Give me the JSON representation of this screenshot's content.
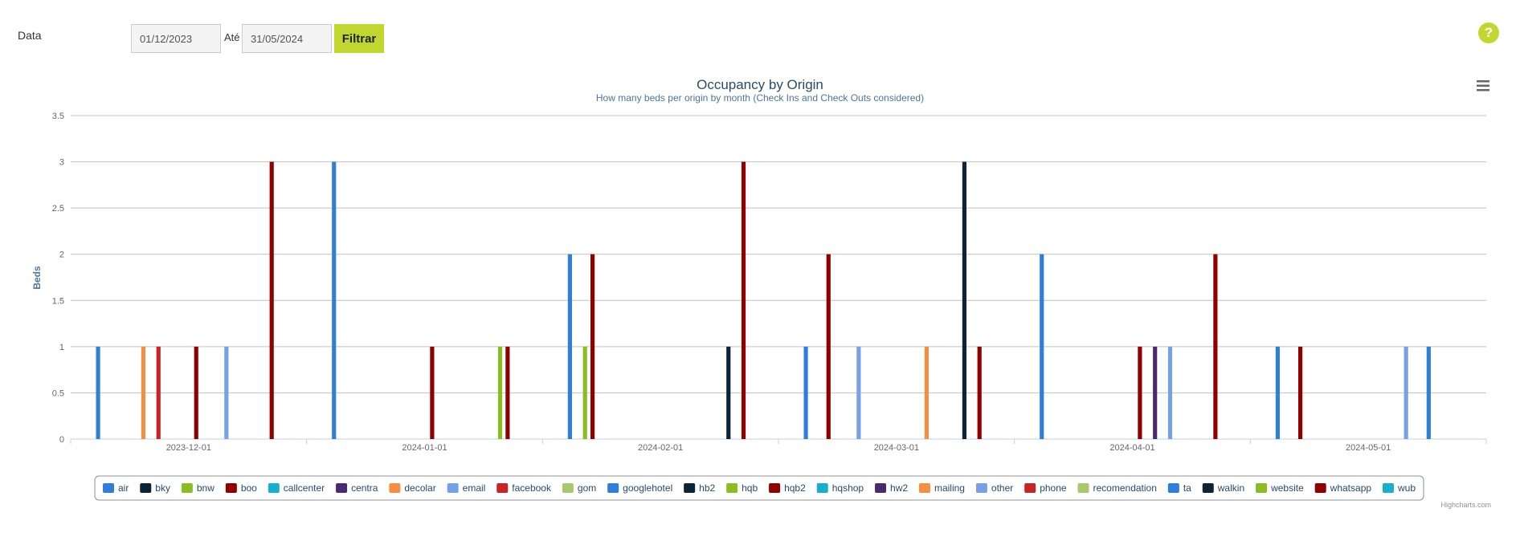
{
  "filter": {
    "label": "Data",
    "from_value": "01/12/2023",
    "to_label": "Até",
    "to_value": "31/05/2024",
    "button_label": "Filtrar",
    "help_label": "?"
  },
  "credit": "Highcharts.com",
  "chart_data": {
    "type": "bar",
    "title": "Occupancy by Origin",
    "subtitle": "How many beds per origin by month (Check Ins and Check Outs considered)",
    "xlabel": "",
    "ylabel": "Beds",
    "ylim": [
      0,
      3.5
    ],
    "yticks": [
      "0",
      "0.5",
      "1",
      "1.5",
      "2",
      "2.5",
      "3",
      "3.5"
    ],
    "categories": [
      "2023-12-01",
      "2024-01-01",
      "2024-02-01",
      "2024-03-01",
      "2024-04-01",
      "2024-05-01"
    ],
    "grid": true,
    "legend_position": "bottom",
    "series": [
      {
        "name": "air",
        "color": "#2f7ed8",
        "values": [
          1,
          3,
          2,
          1,
          2,
          1
        ]
      },
      {
        "name": "bky",
        "color": "#0d233a",
        "values": [
          0,
          0,
          0,
          0,
          0,
          0
        ]
      },
      {
        "name": "bnw",
        "color": "#8bbc21",
        "values": [
          0,
          0,
          1,
          0,
          0,
          0
        ]
      },
      {
        "name": "boo",
        "color": "#910000",
        "values": [
          0,
          0,
          2,
          2,
          0,
          1
        ]
      },
      {
        "name": "callcenter",
        "color": "#1aadce",
        "values": [
          0,
          0,
          0,
          0,
          0,
          0
        ]
      },
      {
        "name": "centra",
        "color": "#492970",
        "values": [
          0,
          0,
          0,
          0,
          0,
          0
        ]
      },
      {
        "name": "decolar",
        "color": "#f28f43",
        "values": [
          1,
          0,
          0,
          0,
          0,
          0
        ]
      },
      {
        "name": "email",
        "color": "#77a1e5",
        "values": [
          0,
          0,
          0,
          1,
          0,
          0
        ]
      },
      {
        "name": "facebook",
        "color": "#c42525",
        "values": [
          1,
          0,
          0,
          0,
          0,
          0
        ]
      },
      {
        "name": "gom",
        "color": "#a6c96a",
        "values": [
          0,
          0,
          0,
          0,
          0,
          0
        ]
      },
      {
        "name": "googlehotel",
        "color": "#2f7ed8",
        "values": [
          0,
          0,
          0,
          0,
          0,
          0
        ]
      },
      {
        "name": "hb2",
        "color": "#0d233a",
        "values": [
          0,
          0,
          0,
          0,
          0,
          0
        ]
      },
      {
        "name": "hqb",
        "color": "#8bbc21",
        "values": [
          0,
          0,
          0,
          0,
          0,
          0
        ]
      },
      {
        "name": "hqb2",
        "color": "#910000",
        "values": [
          1,
          1,
          0,
          0,
          1,
          0
        ]
      },
      {
        "name": "hqshop",
        "color": "#1aadce",
        "values": [
          0,
          0,
          0,
          0,
          0,
          0
        ]
      },
      {
        "name": "hw2",
        "color": "#492970",
        "values": [
          0,
          0,
          0,
          0,
          1,
          0
        ]
      },
      {
        "name": "mailing",
        "color": "#f28f43",
        "values": [
          0,
          0,
          0,
          1,
          0,
          0
        ]
      },
      {
        "name": "other",
        "color": "#77a1e5",
        "values": [
          1,
          0,
          0,
          0,
          1,
          1
        ]
      },
      {
        "name": "phone",
        "color": "#c42525",
        "values": [
          0,
          0,
          0,
          0,
          0,
          0
        ]
      },
      {
        "name": "recomendation",
        "color": "#a6c96a",
        "values": [
          0,
          0,
          0,
          0,
          0,
          0
        ]
      },
      {
        "name": "ta",
        "color": "#2f7ed8",
        "values": [
          0,
          0,
          0,
          0,
          0,
          1
        ]
      },
      {
        "name": "walkin",
        "color": "#0d233a",
        "values": [
          0,
          0,
          1,
          3,
          0,
          0
        ]
      },
      {
        "name": "website",
        "color": "#8bbc21",
        "values": [
          0,
          1,
          0,
          0,
          0,
          0
        ]
      },
      {
        "name": "whatsapp",
        "color": "#910000",
        "values": [
          3,
          1,
          3,
          1,
          2,
          0
        ]
      },
      {
        "name": "wub",
        "color": "#1aadce",
        "values": [
          0,
          0,
          0,
          0,
          0,
          0
        ]
      }
    ]
  }
}
